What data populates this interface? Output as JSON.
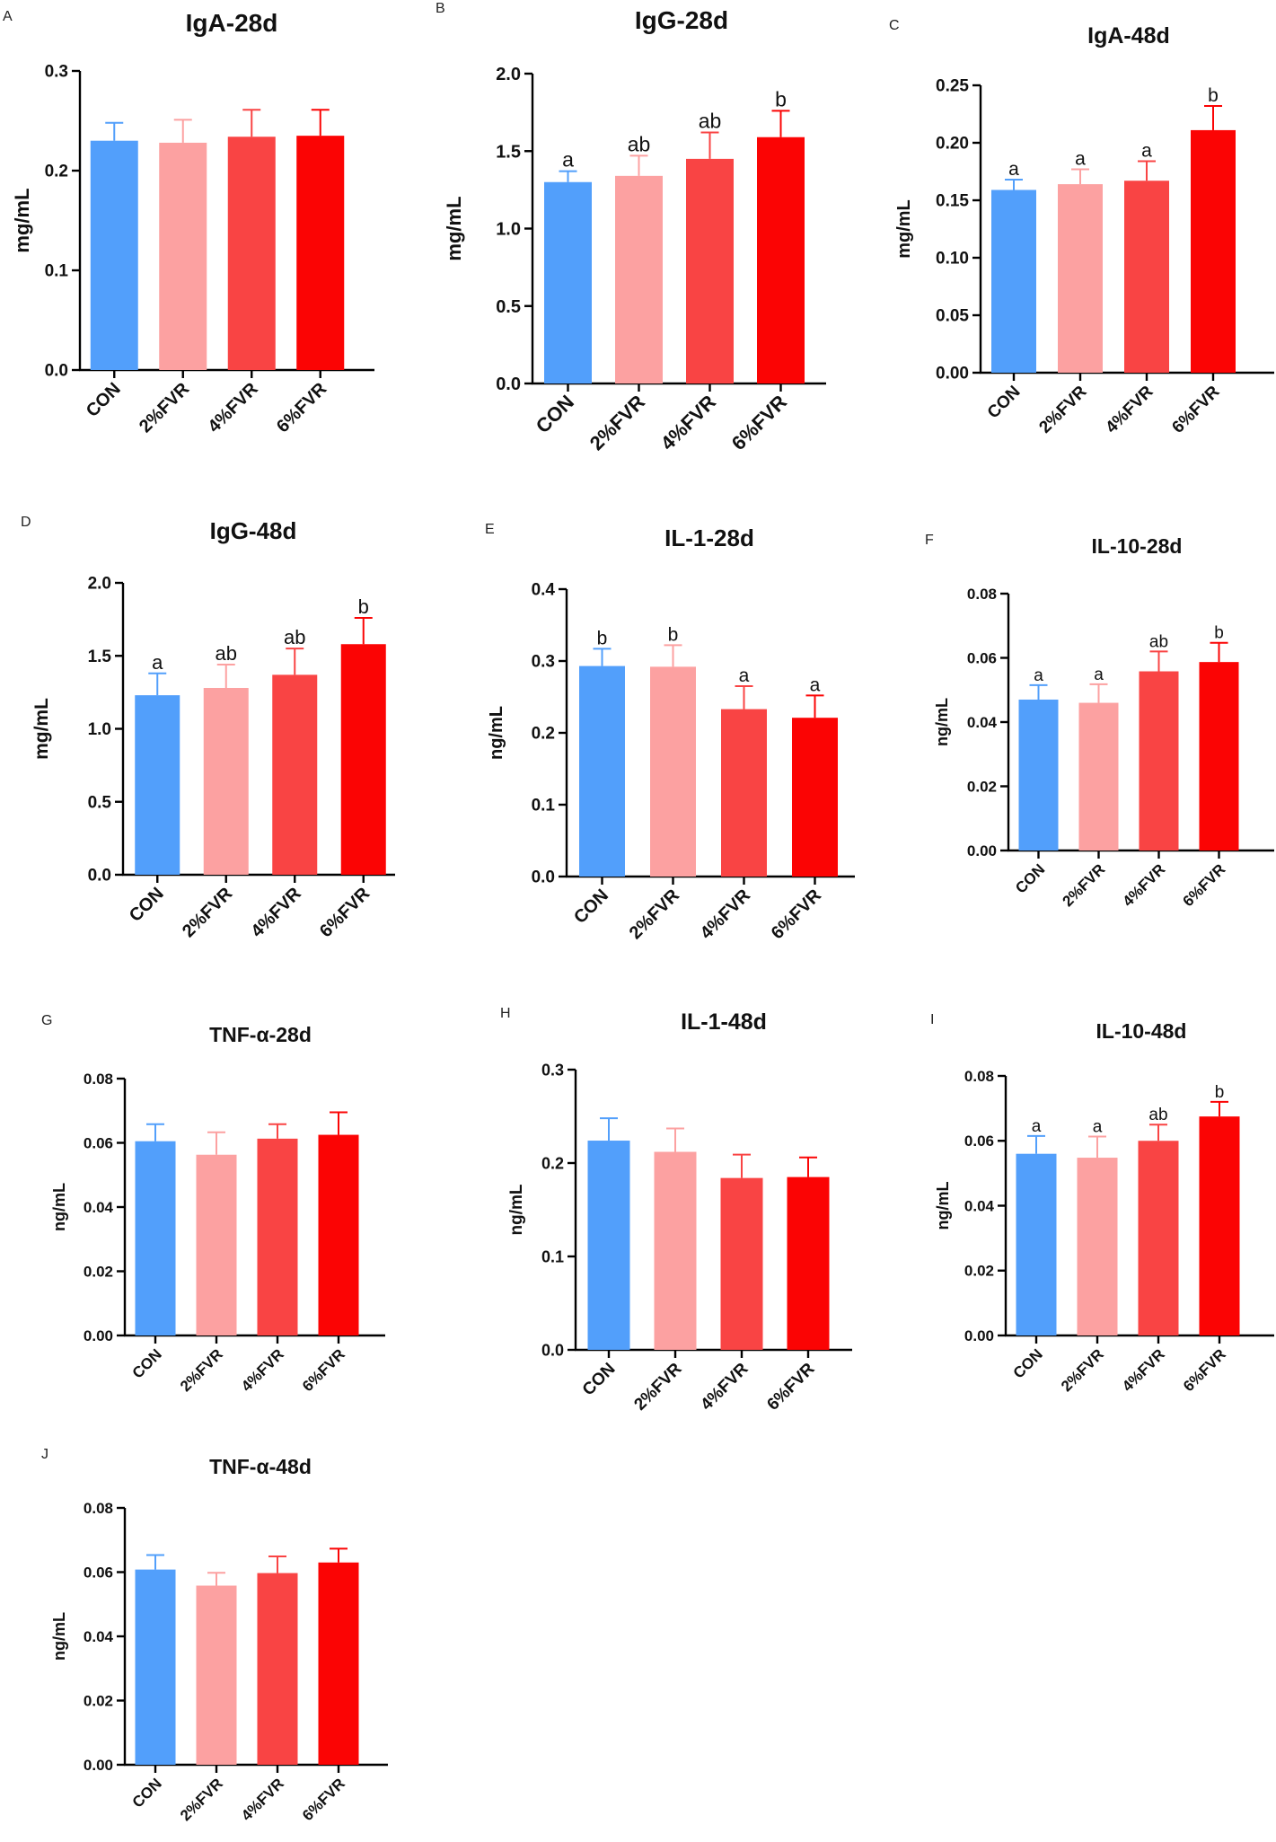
{
  "colors": {
    "CON": "#529ffb",
    "2%FVR": "#fca1a1",
    "4%FVR": "#f94444",
    "6%FVR": "#fb0404"
  },
  "chart_data": [
    {
      "panel": "A",
      "type": "bar",
      "title": "IgA-28d",
      "ylabel": "mg/mL",
      "categories": [
        "CON",
        "2%FVR",
        "4%FVR",
        "6%FVR"
      ],
      "values": [
        0.23,
        0.228,
        0.234,
        0.235
      ],
      "errors": [
        0.018,
        0.023,
        0.027,
        0.026
      ],
      "sig": [
        "",
        "",
        "",
        ""
      ],
      "ylim": [
        0,
        0.3
      ],
      "yticks": [
        0,
        0.1,
        0.2,
        0.3
      ],
      "ytick_labels": [
        "0.0",
        "0.1",
        "0.2",
        "0.3"
      ]
    },
    {
      "panel": "B",
      "type": "bar",
      "title": "IgG-28d",
      "ylabel": "mg/mL",
      "categories": [
        "CON",
        "2%FVR",
        "4%FVR",
        "6%FVR"
      ],
      "values": [
        1.3,
        1.34,
        1.45,
        1.59
      ],
      "errors": [
        0.07,
        0.13,
        0.17,
        0.17
      ],
      "sig": [
        "a",
        "ab",
        "ab",
        "b"
      ],
      "ylim": [
        0,
        2.0
      ],
      "yticks": [
        0,
        0.5,
        1.0,
        1.5,
        2.0
      ],
      "ytick_labels": [
        "0.0",
        "0.5",
        "1.0",
        "1.5",
        "2.0"
      ]
    },
    {
      "panel": "C",
      "type": "bar",
      "title": "IgA-48d",
      "ylabel": "mg/mL",
      "categories": [
        "CON",
        "2%FVR",
        "4%FVR",
        "6%FVR"
      ],
      "values": [
        0.159,
        0.164,
        0.167,
        0.211
      ],
      "errors": [
        0.009,
        0.013,
        0.017,
        0.021
      ],
      "sig": [
        "a",
        "a",
        "a",
        "b"
      ],
      "ylim": [
        0,
        0.25
      ],
      "yticks": [
        0,
        0.05,
        0.1,
        0.15,
        0.2,
        0.25
      ],
      "ytick_labels": [
        "0.00",
        "0.05",
        "0.10",
        "0.15",
        "0.20",
        "0.25"
      ]
    },
    {
      "panel": "D",
      "type": "bar",
      "title": "IgG-48d",
      "ylabel": "mg/mL",
      "categories": [
        "CON",
        "2%FVR",
        "4%FVR",
        "6%FVR"
      ],
      "values": [
        1.23,
        1.28,
        1.37,
        1.58
      ],
      "errors": [
        0.15,
        0.16,
        0.18,
        0.18
      ],
      "sig": [
        "a",
        "ab",
        "ab",
        "b"
      ],
      "ylim": [
        0,
        2.0
      ],
      "yticks": [
        0,
        0.5,
        1.0,
        1.5,
        2.0
      ],
      "ytick_labels": [
        "0.0",
        "0.5",
        "1.0",
        "1.5",
        "2.0"
      ]
    },
    {
      "panel": "E",
      "type": "bar",
      "title": "IL-1-28d",
      "ylabel": "ng/mL",
      "categories": [
        "CON",
        "2%FVR",
        "4%FVR",
        "6%FVR"
      ],
      "values": [
        0.293,
        0.292,
        0.233,
        0.221
      ],
      "errors": [
        0.024,
        0.03,
        0.032,
        0.031
      ],
      "sig": [
        "b",
        "b",
        "a",
        "a"
      ],
      "ylim": [
        0,
        0.4
      ],
      "yticks": [
        0,
        0.1,
        0.2,
        0.3,
        0.4
      ],
      "ytick_labels": [
        "0.0",
        "0.1",
        "0.2",
        "0.3",
        "0.4"
      ]
    },
    {
      "panel": "F",
      "type": "bar",
      "title": "IL-10-28d",
      "ylabel": "ng/mL",
      "categories": [
        "CON",
        "2%FVR",
        "4%FVR",
        "6%FVR"
      ],
      "values": [
        0.047,
        0.046,
        0.0558,
        0.0587
      ],
      "errors": [
        0.0045,
        0.0058,
        0.0062,
        0.006
      ],
      "sig": [
        "a",
        "a",
        "ab",
        "b"
      ],
      "ylim": [
        0,
        0.08
      ],
      "yticks": [
        0,
        0.02,
        0.04,
        0.06,
        0.08
      ],
      "ytick_labels": [
        "0.00",
        "0.02",
        "0.04",
        "0.06",
        "0.08"
      ]
    },
    {
      "panel": "G",
      "type": "bar",
      "title": "TNF-α-28d",
      "ylabel": "ng/mL",
      "categories": [
        "CON",
        "2%FVR",
        "4%FVR",
        "6%FVR"
      ],
      "values": [
        0.0605,
        0.0563,
        0.0613,
        0.0625
      ],
      "errors": [
        0.0053,
        0.007,
        0.0045,
        0.007
      ],
      "sig": [
        "",
        "",
        "",
        ""
      ],
      "ylim": [
        0,
        0.08
      ],
      "yticks": [
        0,
        0.02,
        0.04,
        0.06,
        0.08
      ],
      "ytick_labels": [
        "0.00",
        "0.02",
        "0.04",
        "0.06",
        "0.08"
      ]
    },
    {
      "panel": "H",
      "type": "bar",
      "title": "IL-1-48d",
      "ylabel": "ng/mL",
      "categories": [
        "CON",
        "2%FVR",
        "4%FVR",
        "6%FVR"
      ],
      "values": [
        0.224,
        0.212,
        0.184,
        0.185
      ],
      "errors": [
        0.024,
        0.025,
        0.025,
        0.021
      ],
      "sig": [
        "",
        "",
        "",
        ""
      ],
      "ylim": [
        0,
        0.3
      ],
      "yticks": [
        0,
        0.1,
        0.2,
        0.3
      ],
      "ytick_labels": [
        "0.0",
        "0.1",
        "0.2",
        "0.3"
      ]
    },
    {
      "panel": "I",
      "type": "bar",
      "title": "IL-10-48d",
      "ylabel": "ng/mL",
      "categories": [
        "CON",
        "2%FVR",
        "4%FVR",
        "6%FVR"
      ],
      "values": [
        0.056,
        0.0548,
        0.06,
        0.0675
      ],
      "errors": [
        0.0055,
        0.0065,
        0.005,
        0.0045
      ],
      "sig": [
        "a",
        "a",
        "ab",
        "b"
      ],
      "ylim": [
        0,
        0.08
      ],
      "yticks": [
        0,
        0.02,
        0.04,
        0.06,
        0.08
      ],
      "ytick_labels": [
        "0.00",
        "0.02",
        "0.04",
        "0.06",
        "0.08"
      ]
    },
    {
      "panel": "J",
      "type": "bar",
      "title": "TNF-α-48d",
      "ylabel": "ng/mL",
      "categories": [
        "CON",
        "2%FVR",
        "4%FVR",
        "6%FVR"
      ],
      "values": [
        0.0608,
        0.0558,
        0.0597,
        0.063
      ],
      "errors": [
        0.0045,
        0.004,
        0.0052,
        0.0043
      ],
      "sig": [
        "",
        "",
        "",
        ""
      ],
      "ylim": [
        0,
        0.08
      ],
      "yticks": [
        0,
        0.02,
        0.04,
        0.06,
        0.08
      ],
      "ytick_labels": [
        "0.00",
        "0.02",
        "0.04",
        "0.06",
        "0.08"
      ]
    }
  ]
}
